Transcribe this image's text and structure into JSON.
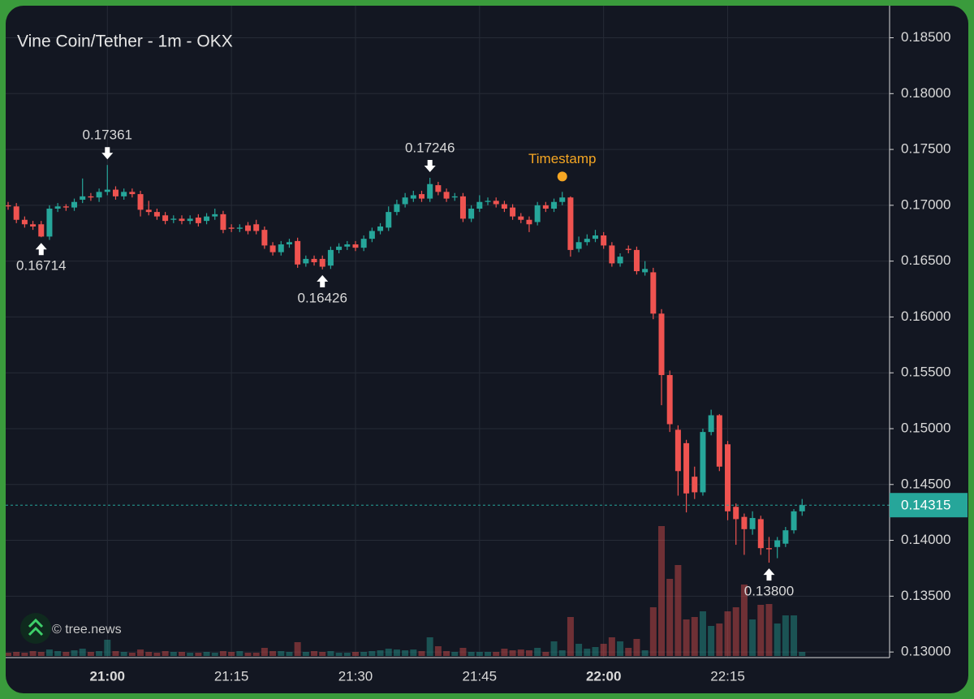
{
  "chart_data": {
    "type": "candlestick",
    "title": "Vine Coin/Tether - 1m - OKX",
    "watermark": "© tree.news",
    "categories": [
      null,
      null,
      null,
      null,
      null,
      null,
      null,
      null,
      null,
      null,
      null,
      null,
      "21:00",
      null,
      null,
      null,
      null,
      null,
      null,
      null,
      null,
      null,
      null,
      null,
      null,
      null,
      null,
      "21:15",
      null,
      null,
      null,
      null,
      null,
      null,
      null,
      null,
      null,
      null,
      null,
      null,
      null,
      null,
      "21:30",
      null,
      null,
      null,
      null,
      null,
      null,
      null,
      null,
      null,
      null,
      null,
      null,
      null,
      null,
      "21:45",
      null,
      null,
      null,
      null,
      null,
      null,
      null,
      null,
      null,
      null,
      null,
      null,
      null,
      null,
      "22:00",
      null,
      null,
      null,
      null,
      null,
      null,
      null,
      null,
      null,
      null,
      null,
      null,
      null,
      null,
      "22:15",
      null,
      null,
      null,
      null,
      null,
      null,
      null,
      null,
      null
    ],
    "open": [
      0.17,
      0.1699,
      0.1687,
      0.1683,
      0.1683,
      0.1672,
      0.1697,
      0.1699,
      0.1698,
      0.1705,
      0.1708,
      0.1707,
      0.1712,
      0.1714,
      0.1708,
      0.1712,
      0.171,
      0.1696,
      0.1694,
      0.1691,
      0.1687,
      0.1688,
      0.1686,
      0.1689,
      0.1686,
      0.169,
      0.1692,
      0.168,
      0.1679,
      0.1682,
      0.1683,
      0.1678,
      0.1664,
      0.1658,
      0.1665,
      0.1668,
      0.1648,
      0.1652,
      0.1652,
      0.1646,
      0.166,
      0.1663,
      0.1665,
      0.1662,
      0.167,
      0.1677,
      0.168,
      0.1694,
      0.1701,
      0.1706,
      0.171,
      0.1706,
      0.1718,
      0.1712,
      0.1707,
      0.1708,
      0.1688,
      0.1697,
      0.1703,
      0.1704,
      0.1701,
      0.1698,
      0.169,
      0.1687,
      0.1685,
      0.17,
      0.1697,
      0.1703,
      0.1707,
      0.1661,
      0.1667,
      0.167,
      0.1673,
      0.1664,
      0.1648,
      0.1661,
      0.166,
      0.164,
      0.164,
      0.1603,
      0.1548,
      0.1499,
      0.1487,
      0.1457,
      0.1443,
      0.1497,
      0.1512,
      0.1486,
      0.143,
      0.1421,
      0.141,
      0.1419,
      0.1393,
      0.1394,
      0.1397,
      0.1409,
      0.1426
    ],
    "high": [
      0.1703,
      0.1702,
      0.169,
      0.1686,
      0.1686,
      0.17,
      0.1702,
      0.1701,
      0.1706,
      0.1724,
      0.1711,
      0.1715,
      0.17361,
      0.1717,
      0.1715,
      0.1715,
      0.1713,
      0.1704,
      0.1697,
      0.1694,
      0.1691,
      0.1691,
      0.1691,
      0.1692,
      0.1693,
      0.1697,
      0.1695,
      0.1683,
      0.1683,
      0.1685,
      0.1687,
      0.1681,
      0.1667,
      0.1668,
      0.167,
      0.1671,
      0.1655,
      0.1655,
      0.1655,
      0.1663,
      0.1666,
      0.1668,
      0.1668,
      0.1673,
      0.168,
      0.1684,
      0.1699,
      0.1705,
      0.1711,
      0.1713,
      0.1713,
      0.17246,
      0.1721,
      0.1715,
      0.1711,
      0.1711,
      0.17,
      0.1709,
      0.1707,
      0.1707,
      0.1704,
      0.1701,
      0.1693,
      0.169,
      0.1703,
      0.1703,
      0.1706,
      0.1712,
      0.1708,
      0.1672,
      0.1674,
      0.1678,
      0.1676,
      0.1667,
      0.1657,
      0.1664,
      0.1663,
      0.165,
      0.1644,
      0.1607,
      0.1552,
      0.1503,
      0.149,
      0.1466,
      0.15,
      0.1517,
      0.1513,
      0.1489,
      0.1433,
      0.1424,
      0.1426,
      0.1422,
      0.1403,
      0.1403,
      0.1412,
      0.1428,
      0.1437
    ],
    "low": [
      0.1696,
      0.1684,
      0.168,
      0.1678,
      0.16714,
      0.1669,
      0.1694,
      0.1695,
      0.1695,
      0.1702,
      0.1704,
      0.1703,
      0.1709,
      0.1705,
      0.1705,
      0.1707,
      0.169,
      0.1691,
      0.1687,
      0.1683,
      0.1684,
      0.1683,
      0.1683,
      0.1681,
      0.1683,
      0.1687,
      0.1675,
      0.1676,
      0.1676,
      0.1674,
      0.1674,
      0.1661,
      0.1655,
      0.1655,
      0.1662,
      0.1644,
      0.1645,
      0.1646,
      0.16426,
      0.1643,
      0.1657,
      0.166,
      0.1659,
      0.1659,
      0.1667,
      0.1674,
      0.1677,
      0.1691,
      0.1698,
      0.1703,
      0.1703,
      0.1703,
      0.1709,
      0.1703,
      0.1704,
      0.1685,
      0.1685,
      0.1694,
      0.17,
      0.1698,
      0.1694,
      0.1687,
      0.1684,
      0.1676,
      0.1682,
      0.1694,
      0.1694,
      0.17,
      0.1654,
      0.1658,
      0.1664,
      0.1667,
      0.1661,
      0.1645,
      0.1645,
      0.1657,
      0.1638,
      0.1637,
      0.1598,
      0.1521,
      0.1497,
      0.144,
      0.1425,
      0.1437,
      0.144,
      0.1494,
      0.1462,
      0.1418,
      0.1396,
      0.1387,
      0.1405,
      0.1387,
      0.138,
      0.1384,
      0.1394,
      0.1406,
      0.1422
    ],
    "close": [
      0.1699,
      0.1687,
      0.1683,
      0.1681,
      0.1672,
      0.1697,
      0.1699,
      0.1698,
      0.1703,
      0.1708,
      0.1707,
      0.1712,
      0.1714,
      0.1708,
      0.1712,
      0.171,
      0.1696,
      0.1694,
      0.169,
      0.1686,
      0.1688,
      0.1686,
      0.1688,
      0.1684,
      0.169,
      0.1692,
      0.1678,
      0.1679,
      0.168,
      0.1677,
      0.1677,
      0.1664,
      0.1658,
      0.1665,
      0.1667,
      0.1647,
      0.1652,
      0.1649,
      0.1645,
      0.166,
      0.1663,
      0.1665,
      0.1662,
      0.167,
      0.1677,
      0.1681,
      0.1694,
      0.1701,
      0.1707,
      0.1709,
      0.1706,
      0.1719,
      0.1712,
      0.1706,
      0.1708,
      0.1688,
      0.1697,
      0.1703,
      0.1704,
      0.1701,
      0.1697,
      0.169,
      0.1687,
      0.1683,
      0.17,
      0.1697,
      0.1703,
      0.1707,
      0.166,
      0.1667,
      0.167,
      0.1673,
      0.1664,
      0.1648,
      0.1654,
      0.166,
      0.1641,
      0.1643,
      0.1603,
      0.1548,
      0.1504,
      0.1462,
      0.1442,
      0.1443,
      0.1497,
      0.1512,
      0.1466,
      0.1426,
      0.1419,
      0.141,
      0.142,
      0.1393,
      0.1392,
      0.14,
      0.1409,
      0.1426,
      0.14315
    ],
    "volume": [
      4,
      5,
      4,
      6,
      5,
      8,
      6,
      5,
      7,
      9,
      5,
      6,
      20,
      6,
      5,
      4,
      8,
      5,
      4,
      6,
      5,
      5,
      4,
      4,
      5,
      4,
      6,
      5,
      6,
      4,
      4,
      10,
      6,
      6,
      5,
      17,
      5,
      6,
      5,
      6,
      4,
      4,
      5,
      5,
      6,
      7,
      9,
      8,
      7,
      8,
      6,
      23,
      12,
      6,
      5,
      10,
      5,
      5,
      5,
      5,
      9,
      7,
      8,
      7,
      10,
      5,
      18,
      7,
      48,
      15,
      9,
      11,
      15,
      23,
      18,
      10,
      21,
      7,
      60,
      160,
      95,
      112,
      45,
      48,
      55,
      37,
      40,
      55,
      60,
      88,
      45,
      63,
      64,
      40,
      50,
      50,
      5
    ],
    "annotations": [
      {
        "index": 4,
        "field": "low",
        "label": "0.16714"
      },
      {
        "index": 12,
        "field": "high",
        "label": "0.17361"
      },
      {
        "index": 38,
        "field": "low",
        "label": "0.16426"
      },
      {
        "index": 51,
        "field": "high",
        "label": "0.17246"
      },
      {
        "index": 92,
        "field": "low",
        "label": "0.13800"
      }
    ],
    "timestamp_marker": {
      "index": 67,
      "label": "Timestamp"
    },
    "ylim": [
      0.1295,
      0.1878
    ],
    "yticks": [
      {
        "value": 0.13,
        "label": "0.13000"
      },
      {
        "value": 0.135,
        "label": "0.13500"
      },
      {
        "value": 0.14,
        "label": "0.14000"
      },
      {
        "value": 0.145,
        "label": "0.14500"
      },
      {
        "value": 0.15,
        "label": "0.15000"
      },
      {
        "value": 0.155,
        "label": "0.15500"
      },
      {
        "value": 0.16,
        "label": "0.16000"
      },
      {
        "value": 0.165,
        "label": "0.16500"
      },
      {
        "value": 0.17,
        "label": "0.17000"
      },
      {
        "value": 0.175,
        "label": "0.17500"
      },
      {
        "value": 0.18,
        "label": "0.18000"
      },
      {
        "value": 0.185,
        "label": "0.18500"
      }
    ],
    "grid": true,
    "up_color": "#26a69a",
    "down_color": "#ef5350"
  }
}
